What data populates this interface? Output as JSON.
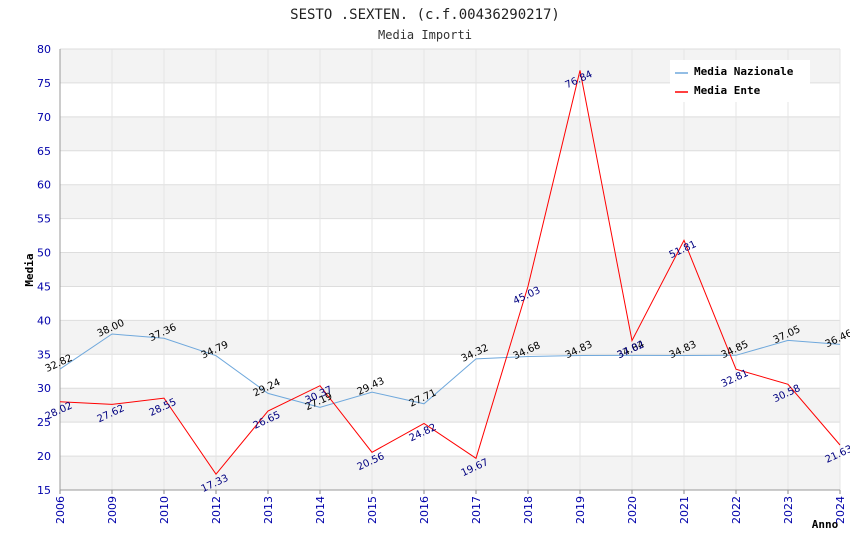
{
  "chart_data": {
    "type": "line",
    "title": "SESTO .SEXTEN. (c.f.00436290217)",
    "subtitle": "Media Importi",
    "xlabel": "Anno",
    "ylabel": "Media",
    "ylim": [
      15,
      80
    ],
    "y_ticks": [
      "15",
      "20",
      "25",
      "30",
      "35",
      "40",
      "45",
      "50",
      "55",
      "60",
      "65",
      "70",
      "75",
      "80"
    ],
    "categories": [
      "2006",
      "2009",
      "2010",
      "2012",
      "2013",
      "2014",
      "2015",
      "2016",
      "2017",
      "2018",
      "2019",
      "2020",
      "2021",
      "2022",
      "2023",
      "2024"
    ],
    "series": [
      {
        "name": "Media Nazionale",
        "color": "#6fa8dc",
        "values": [
          32.82,
          38.0,
          37.36,
          34.79,
          29.24,
          27.19,
          29.43,
          27.71,
          34.32,
          34.68,
          34.83,
          34.84,
          34.83,
          34.85,
          37.05,
          36.46
        ],
        "labels": [
          "32.82",
          "38.00",
          "37.36",
          "34.79",
          "29.24",
          "27.19",
          "29.43",
          "27.71",
          "34.32",
          "34.68",
          "34.83",
          "34.84",
          "34.83",
          "34.85",
          "37.05",
          "36.46"
        ]
      },
      {
        "name": "Media Ente",
        "color": "#ff0000",
        "values": [
          28.02,
          27.62,
          28.55,
          17.33,
          26.65,
          30.37,
          20.56,
          24.82,
          19.67,
          45.03,
          76.84,
          37.02,
          51.81,
          32.81,
          30.58,
          21.63
        ],
        "labels": [
          "28.02",
          "27.62",
          "28.55",
          "17.33",
          "26.65",
          "30.37",
          "20.56",
          "24.82",
          "19.67",
          "45.03",
          "76.84",
          "37.02",
          "51.81",
          "32.81",
          "30.58",
          "21.63"
        ]
      }
    ],
    "legend": [
      "Media Nazionale",
      "Media Ente"
    ],
    "legend_position": "top-right",
    "grid": true
  }
}
